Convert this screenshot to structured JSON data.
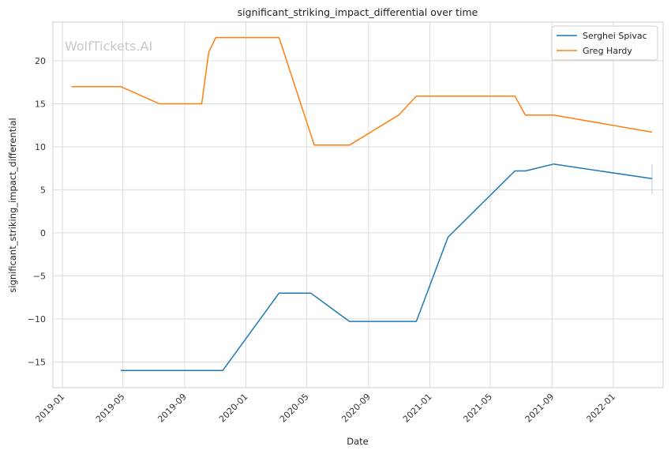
{
  "chart_data": {
    "type": "line",
    "title": "significant_striking_impact_differential over time",
    "xlabel": "Date",
    "ylabel": "significant_striking_impact_differential",
    "watermark": "WolfTickets.AI",
    "grid": true,
    "legend_position": "top-right",
    "x_ticks": [
      "2019-01",
      "2019-05",
      "2019-09",
      "2020-01",
      "2020-05",
      "2020-09",
      "2021-01",
      "2021-05",
      "2021-09",
      "2022-01"
    ],
    "y_ticks": [
      20,
      15,
      10,
      5,
      0,
      -5,
      -10,
      -15
    ],
    "y_tick_labels": [
      "20",
      "15",
      "10",
      "5",
      "0",
      "−5",
      "−10",
      "−15"
    ],
    "xlim": [
      "2018-12-13",
      "2022-04-10"
    ],
    "ylim": [
      -18,
      24.5
    ],
    "series": [
      {
        "name": "Serghei Spivac",
        "color": "#1f77b4",
        "points": [
          [
            "2019-04-27",
            -16.0
          ],
          [
            "2019-11-16",
            -16.0
          ],
          [
            "2020-03-07",
            -7.0
          ],
          [
            "2020-05-09",
            -7.0
          ],
          [
            "2020-07-25",
            -10.3
          ],
          [
            "2020-12-05",
            -10.3
          ],
          [
            "2021-02-06",
            -0.5
          ],
          [
            "2021-06-19",
            7.2
          ],
          [
            "2021-07-10",
            7.2
          ],
          [
            "2021-09-04",
            8.0
          ],
          [
            "2022-03-19",
            6.3
          ]
        ],
        "error_bar": {
          "x": "2022-03-19",
          "low": 4.5,
          "high": 8.0
        }
      },
      {
        "name": "Greg Hardy",
        "color": "#ff7f0e",
        "points": [
          [
            "2019-01-19",
            17.0
          ],
          [
            "2019-04-27",
            17.0
          ],
          [
            "2019-07-13",
            15.0
          ],
          [
            "2019-10-05",
            15.0
          ],
          [
            "2019-10-19",
            21.0
          ],
          [
            "2019-11-02",
            22.7
          ],
          [
            "2020-03-07",
            22.7
          ],
          [
            "2020-05-16",
            10.2
          ],
          [
            "2020-07-25",
            10.2
          ],
          [
            "2020-10-31",
            13.7
          ],
          [
            "2020-12-05",
            15.9
          ],
          [
            "2021-06-19",
            15.9
          ],
          [
            "2021-07-10",
            13.7
          ],
          [
            "2021-09-04",
            13.7
          ],
          [
            "2022-03-19",
            11.7
          ]
        ]
      }
    ]
  }
}
